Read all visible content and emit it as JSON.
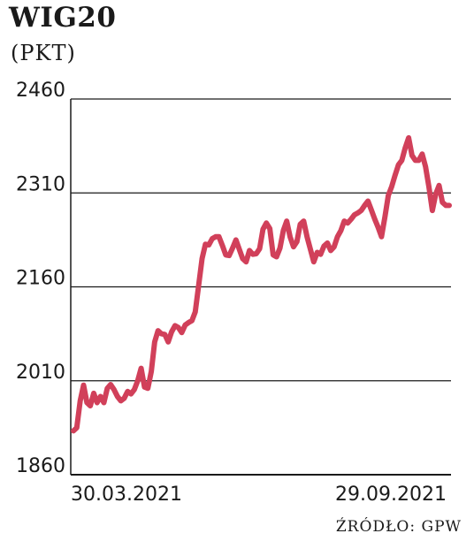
{
  "chart_data": {
    "type": "line",
    "title": "WIG20",
    "unit": "(PKT)",
    "source": "ŹRÓDŁO: GPW",
    "x_start_label": "30.03.2021",
    "x_end_label": "29.09.2021",
    "y_ticks": [
      1860,
      2010,
      2160,
      2310,
      2460
    ],
    "ylim": [
      1860,
      2460
    ],
    "grid": true,
    "color": "#d1405a",
    "series": [
      {
        "values": [
          1930,
          1935,
          1978,
          2003,
          1975,
          1970,
          1990,
          1975,
          1985,
          1975,
          1998,
          2004,
          1996,
          1985,
          1978,
          1982,
          1993,
          1989,
          1996,
          2010,
          2030,
          2000,
          1998,
          2025,
          2072,
          2090,
          2085,
          2084,
          2072,
          2088,
          2098,
          2095,
          2087,
          2099,
          2103,
          2106,
          2120,
          2163,
          2205,
          2228,
          2227,
          2237,
          2240,
          2240,
          2226,
          2211,
          2210,
          2222,
          2235,
          2220,
          2205,
          2200,
          2218,
          2212,
          2213,
          2221,
          2252,
          2262,
          2253,
          2211,
          2208,
          2222,
          2250,
          2265,
          2240,
          2224,
          2232,
          2260,
          2265,
          2240,
          2220,
          2200,
          2215,
          2212,
          2225,
          2230,
          2218,
          2224,
          2240,
          2250,
          2265,
          2262,
          2268,
          2275,
          2278,
          2282,
          2290,
          2297,
          2283,
          2268,
          2255,
          2240,
          2272,
          2306,
          2320,
          2338,
          2355,
          2362,
          2382,
          2398,
          2370,
          2362,
          2362,
          2372,
          2352,
          2320,
          2282,
          2308,
          2322,
          2295,
          2290,
          2290
        ]
      }
    ]
  }
}
